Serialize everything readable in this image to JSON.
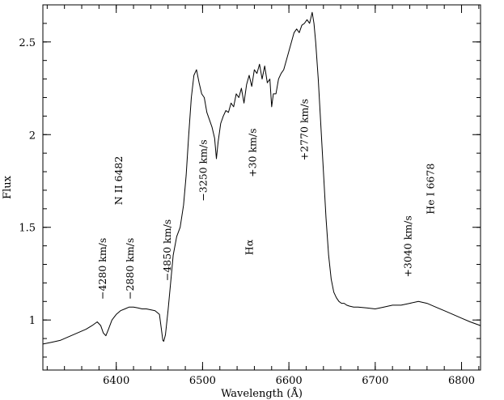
{
  "chart_data": {
    "type": "line",
    "xlabel": "Wavelength (Å)",
    "ylabel": "Flux",
    "xlim": [
      6315,
      6822
    ],
    "ylim": [
      0.73,
      2.7
    ],
    "xticks_major": [
      6400,
      6500,
      6600,
      6700,
      6800
    ],
    "xticks_minor_step": 20,
    "yticks_major": [
      1,
      1.5,
      2,
      2.5
    ],
    "ytick_labels": [
      "1",
      "1.5",
      "2",
      "2.5"
    ],
    "yticks_minor_step": 0.1,
    "series": [
      {
        "x": [
          6315,
          6325,
          6335,
          6345,
          6355,
          6365,
          6372,
          6378,
          6382,
          6385,
          6388,
          6391,
          6395,
          6400,
          6405,
          6410,
          6415,
          6420,
          6425,
          6430,
          6435,
          6440,
          6445,
          6450,
          6452,
          6454,
          6455,
          6457,
          6460,
          6463,
          6466,
          6470,
          6474,
          6478,
          6481,
          6484,
          6487,
          6490,
          6493,
          6496,
          6499,
          6502,
          6505,
          6508,
          6511,
          6514,
          6516,
          6518,
          6521,
          6524,
          6527,
          6530,
          6533,
          6536,
          6539,
          6542,
          6545,
          6548,
          6551,
          6554,
          6557,
          6560,
          6563,
          6566,
          6569,
          6572,
          6575,
          6578,
          6580,
          6582,
          6585,
          6588,
          6591,
          6594,
          6597,
          6600,
          6603,
          6606,
          6609,
          6612,
          6615,
          6618,
          6621,
          6624,
          6627,
          6629,
          6631,
          6634,
          6637,
          6640,
          6643,
          6646,
          6649,
          6652,
          6655,
          6658,
          6661,
          6664,
          6667,
          6670,
          6675,
          6680,
          6690,
          6700,
          6710,
          6720,
          6730,
          6740,
          6750,
          6760,
          6770,
          6780,
          6790,
          6800,
          6810,
          6822
        ],
        "y": [
          0.87,
          0.88,
          0.89,
          0.91,
          0.93,
          0.95,
          0.97,
          0.99,
          0.97,
          0.93,
          0.915,
          0.95,
          1.0,
          1.03,
          1.05,
          1.06,
          1.07,
          1.07,
          1.065,
          1.06,
          1.06,
          1.055,
          1.05,
          1.03,
          0.96,
          0.89,
          0.885,
          0.92,
          1.05,
          1.2,
          1.35,
          1.45,
          1.5,
          1.62,
          1.78,
          2.0,
          2.2,
          2.32,
          2.35,
          2.28,
          2.22,
          2.2,
          2.12,
          2.08,
          2.04,
          1.98,
          1.87,
          1.96,
          2.06,
          2.1,
          2.13,
          2.12,
          2.17,
          2.15,
          2.22,
          2.2,
          2.25,
          2.17,
          2.27,
          2.32,
          2.26,
          2.35,
          2.33,
          2.38,
          2.3,
          2.37,
          2.28,
          2.3,
          2.15,
          2.22,
          2.22,
          2.3,
          2.33,
          2.35,
          2.4,
          2.45,
          2.5,
          2.55,
          2.57,
          2.55,
          2.59,
          2.6,
          2.62,
          2.6,
          2.66,
          2.6,
          2.5,
          2.3,
          2.05,
          1.8,
          1.55,
          1.35,
          1.22,
          1.15,
          1.12,
          1.1,
          1.09,
          1.09,
          1.08,
          1.075,
          1.07,
          1.07,
          1.065,
          1.06,
          1.07,
          1.08,
          1.08,
          1.09,
          1.1,
          1.09,
          1.07,
          1.05,
          1.03,
          1.01,
          0.99,
          0.97
        ]
      }
    ],
    "annotations": [
      {
        "text": "−4280 km/s",
        "x": 6388,
        "y": 1.11
      },
      {
        "text": "−2880 km/s",
        "x": 6420,
        "y": 1.11
      },
      {
        "text": "N II 6482",
        "x": 6407,
        "y": 1.62
      },
      {
        "text": "−4850 km/s",
        "x": 6463,
        "y": 1.21
      },
      {
        "text": "−3250 km/s",
        "x": 6505,
        "y": 1.64
      },
      {
        "text": "Hα",
        "x": 6558,
        "y": 1.35
      },
      {
        "text": "+30 km/s",
        "x": 6562,
        "y": 1.77
      },
      {
        "text": "+2770 km/s",
        "x": 6622,
        "y": 1.86
      },
      {
        "text": "+3040 km/s",
        "x": 6742,
        "y": 1.23
      },
      {
        "text": "He I 6678",
        "x": 6768,
        "y": 1.57
      }
    ]
  }
}
